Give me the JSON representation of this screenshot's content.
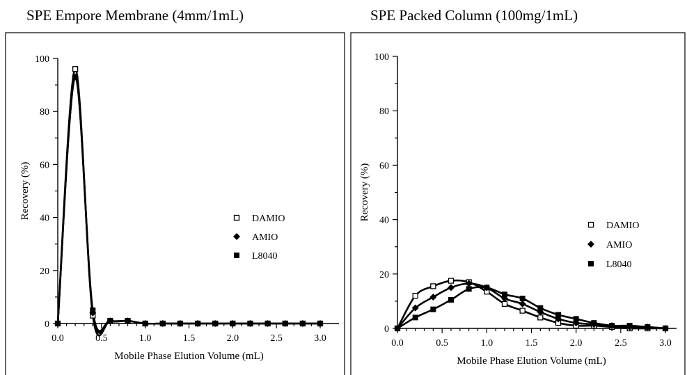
{
  "chart_data": [
    {
      "type": "line",
      "title": "SPE Empore Membrane (4mm/1mL)",
      "xlabel": "Mobile Phase Elution Volume (mL)",
      "ylabel": "Recovery (%)",
      "xlim": [
        0,
        3.0
      ],
      "ylim": [
        0,
        100
      ],
      "xticks": [
        "0.0",
        "0.5",
        "1.0",
        "1.5",
        "2.0",
        "2.5",
        "3.0"
      ],
      "yticks": [
        "0",
        "20",
        "40",
        "60",
        "80",
        "100"
      ],
      "legend_position": "right",
      "series": [
        {
          "name": "DAMIO",
          "marker": "open-square",
          "x": [
            0,
            0.2,
            0.4,
            0.6,
            0.8,
            1.0,
            1.2,
            1.4,
            1.6,
            1.8,
            2.0,
            2.2,
            2.4,
            2.6,
            2.8,
            3.0
          ],
          "y": [
            0,
            96,
            3,
            1,
            1,
            0,
            0,
            0,
            0,
            0,
            0,
            0,
            0,
            0,
            0,
            0
          ]
        },
        {
          "name": "AMIO",
          "marker": "filled-diamond",
          "x": [
            0,
            0.2,
            0.4,
            0.6,
            0.8,
            1.0,
            1.2,
            1.4,
            1.6,
            1.8,
            2.0,
            2.2,
            2.4,
            2.6,
            2.8,
            3.0
          ],
          "y": [
            0,
            93,
            4,
            1,
            1,
            0,
            0,
            0,
            0,
            0,
            0,
            0,
            0,
            0,
            0,
            0
          ]
        },
        {
          "name": "L8040",
          "marker": "filled-square",
          "x": [
            0,
            0.2,
            0.4,
            0.6,
            0.8,
            1.0,
            1.2,
            1.4,
            1.6,
            1.8,
            2.0,
            2.2,
            2.4,
            2.6,
            2.8,
            3.0
          ],
          "y": [
            0,
            93,
            5,
            1,
            1,
            0,
            0,
            0,
            0,
            0,
            0,
            0,
            0,
            0,
            0,
            0
          ]
        }
      ]
    },
    {
      "type": "line",
      "title": "SPE Packed Column (100mg/1mL)",
      "xlabel": "Mobile Phase Elution Volume (mL)",
      "ylabel": "Recovery (%)",
      "xlim": [
        0,
        3.0
      ],
      "ylim": [
        0,
        100
      ],
      "xticks": [
        "0.0",
        "0.5",
        "1.0",
        "1.5",
        "2.0",
        "2.5",
        "3.0"
      ],
      "yticks": [
        "0",
        "20",
        "40",
        "60",
        "80",
        "100"
      ],
      "legend_position": "right",
      "series": [
        {
          "name": "DAMIO",
          "marker": "open-square",
          "x": [
            0,
            0.2,
            0.4,
            0.6,
            0.8,
            1.0,
            1.2,
            1.4,
            1.6,
            1.8,
            2.0,
            2.2,
            2.4,
            2.6,
            2.8,
            3.0
          ],
          "y": [
            0,
            12,
            15.5,
            17.5,
            17,
            13.5,
            9,
            6.5,
            4,
            2,
            1,
            1,
            0.5,
            0,
            0,
            0
          ]
        },
        {
          "name": "AMIO",
          "marker": "filled-diamond",
          "x": [
            0,
            0.2,
            0.4,
            0.6,
            0.8,
            1.0,
            1.2,
            1.4,
            1.6,
            1.8,
            2.0,
            2.2,
            2.4,
            2.6,
            2.8,
            3.0
          ],
          "y": [
            0,
            7.5,
            11.5,
            15,
            16.5,
            15,
            11,
            9,
            6,
            3.5,
            2,
            1.5,
            1,
            0.5,
            0.5,
            0
          ]
        },
        {
          "name": "L8040",
          "marker": "filled-square",
          "x": [
            0,
            0.2,
            0.4,
            0.6,
            0.8,
            1.0,
            1.2,
            1.4,
            1.6,
            1.8,
            2.0,
            2.2,
            2.4,
            2.6,
            2.8,
            3.0
          ],
          "y": [
            0,
            4,
            7,
            10.5,
            14.5,
            15,
            12.5,
            11,
            7.5,
            5,
            3.5,
            2,
            1,
            1,
            0.5,
            0
          ]
        }
      ]
    }
  ]
}
